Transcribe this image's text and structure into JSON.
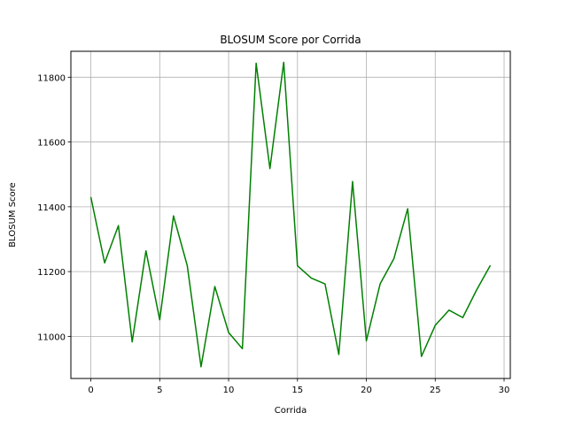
{
  "chart_data": {
    "type": "line",
    "title": "BLOSUM Score por Corrida",
    "xlabel": "Corrida",
    "ylabel": "BLOSUM Score",
    "xlim": [
      -1.45,
      30.45
    ],
    "ylim": [
      10870,
      11880
    ],
    "xticks": [
      0,
      5,
      10,
      15,
      20,
      25,
      30
    ],
    "yticks": [
      11000,
      11200,
      11400,
      11600,
      11800
    ],
    "grid": true,
    "series": [
      {
        "color": "#008000",
        "x": [
          0,
          1,
          2,
          3,
          4,
          5,
          6,
          7,
          8,
          9,
          10,
          11,
          12,
          13,
          14,
          15,
          16,
          17,
          18,
          19,
          20,
          21,
          22,
          23,
          24,
          25,
          26,
          27,
          28,
          29
        ],
        "y": [
          11430,
          11227,
          11342,
          10983,
          11264,
          11051,
          11372,
          11218,
          10906,
          11154,
          11012,
          10962,
          11843,
          11518,
          11846,
          11218,
          11180,
          11162,
          10944,
          11478,
          10986,
          11162,
          11240,
          11394,
          10938,
          11034,
          11081,
          11058,
          11143,
          11219
        ]
      }
    ]
  }
}
